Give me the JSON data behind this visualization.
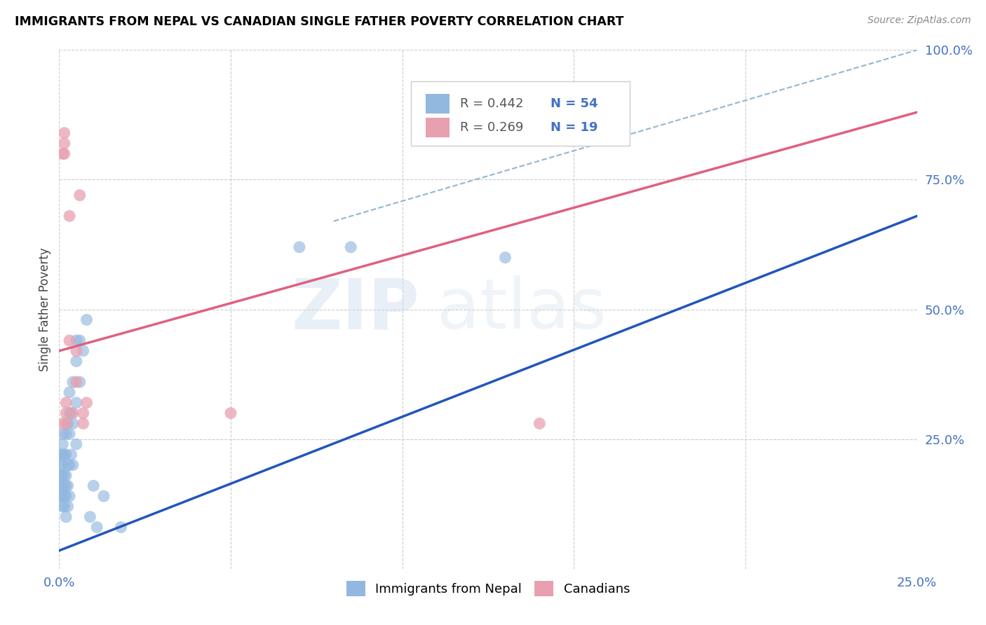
{
  "title": "IMMIGRANTS FROM NEPAL VS CANADIAN SINGLE FATHER POVERTY CORRELATION CHART",
  "source": "Source: ZipAtlas.com",
  "ylabel": "Single Father Poverty",
  "xlim": [
    0.0,
    0.25
  ],
  "ylim": [
    0.0,
    1.0
  ],
  "xticks": [
    0.0,
    0.05,
    0.1,
    0.15,
    0.2,
    0.25
  ],
  "yticks": [
    0.0,
    0.25,
    0.5,
    0.75,
    1.0
  ],
  "xtick_labels": [
    "0.0%",
    "",
    "",
    "",
    "",
    "25.0%"
  ],
  "ytick_labels": [
    "",
    "25.0%",
    "50.0%",
    "75.0%",
    "100.0%"
  ],
  "blue_color": "#92b8e0",
  "pink_color": "#e8a0b0",
  "blue_line_color": "#2255bb",
  "pink_line_color": "#e06080",
  "dashed_line_color": "#90b8d0",
  "legend_R_blue": "0.442",
  "legend_N_blue": "54",
  "legend_R_pink": "0.269",
  "legend_N_pink": "19",
  "legend_label_blue": "Immigrants from Nepal",
  "legend_label_pink": "Canadians",
  "watermark_zip": "ZIP",
  "watermark_atlas": "atlas",
  "blue_line_x": [
    0.0,
    0.25
  ],
  "blue_line_y": [
    0.035,
    0.68
  ],
  "pink_line_x": [
    0.0,
    0.25
  ],
  "pink_line_y": [
    0.42,
    0.88
  ],
  "dashed_line_x": [
    0.08,
    0.25
  ],
  "dashed_line_y": [
    0.67,
    1.0
  ],
  "blue_scatter": [
    [
      0.0005,
      0.14
    ],
    [
      0.0005,
      0.16
    ],
    [
      0.0005,
      0.18
    ],
    [
      0.0005,
      0.2
    ],
    [
      0.0005,
      0.22
    ],
    [
      0.001,
      0.12
    ],
    [
      0.001,
      0.14
    ],
    [
      0.001,
      0.16
    ],
    [
      0.001,
      0.18
    ],
    [
      0.001,
      0.2
    ],
    [
      0.001,
      0.22
    ],
    [
      0.001,
      0.24
    ],
    [
      0.001,
      0.26
    ],
    [
      0.0015,
      0.12
    ],
    [
      0.0015,
      0.14
    ],
    [
      0.0015,
      0.16
    ],
    [
      0.0015,
      0.18
    ],
    [
      0.0015,
      0.22
    ],
    [
      0.002,
      0.1
    ],
    [
      0.002,
      0.14
    ],
    [
      0.002,
      0.16
    ],
    [
      0.002,
      0.18
    ],
    [
      0.002,
      0.22
    ],
    [
      0.002,
      0.26
    ],
    [
      0.0025,
      0.12
    ],
    [
      0.0025,
      0.16
    ],
    [
      0.0025,
      0.2
    ],
    [
      0.0025,
      0.28
    ],
    [
      0.003,
      0.14
    ],
    [
      0.003,
      0.2
    ],
    [
      0.003,
      0.26
    ],
    [
      0.003,
      0.3
    ],
    [
      0.003,
      0.34
    ],
    [
      0.0035,
      0.22
    ],
    [
      0.0035,
      0.3
    ],
    [
      0.004,
      0.2
    ],
    [
      0.004,
      0.28
    ],
    [
      0.004,
      0.36
    ],
    [
      0.005,
      0.24
    ],
    [
      0.005,
      0.32
    ],
    [
      0.005,
      0.4
    ],
    [
      0.005,
      0.44
    ],
    [
      0.006,
      0.36
    ],
    [
      0.006,
      0.44
    ],
    [
      0.007,
      0.42
    ],
    [
      0.008,
      0.48
    ],
    [
      0.009,
      0.1
    ],
    [
      0.01,
      0.16
    ],
    [
      0.011,
      0.08
    ],
    [
      0.013,
      0.14
    ],
    [
      0.018,
      0.08
    ],
    [
      0.07,
      0.62
    ],
    [
      0.085,
      0.62
    ],
    [
      0.13,
      0.6
    ]
  ],
  "pink_scatter": [
    [
      0.001,
      0.28
    ],
    [
      0.001,
      0.8
    ],
    [
      0.0015,
      0.8
    ],
    [
      0.0015,
      0.82
    ],
    [
      0.0015,
      0.84
    ],
    [
      0.002,
      0.28
    ],
    [
      0.002,
      0.3
    ],
    [
      0.002,
      0.32
    ],
    [
      0.003,
      0.44
    ],
    [
      0.003,
      0.68
    ],
    [
      0.004,
      0.3
    ],
    [
      0.005,
      0.36
    ],
    [
      0.005,
      0.42
    ],
    [
      0.006,
      0.72
    ],
    [
      0.007,
      0.28
    ],
    [
      0.007,
      0.3
    ],
    [
      0.008,
      0.32
    ],
    [
      0.05,
      0.3
    ],
    [
      0.14,
      0.28
    ]
  ]
}
